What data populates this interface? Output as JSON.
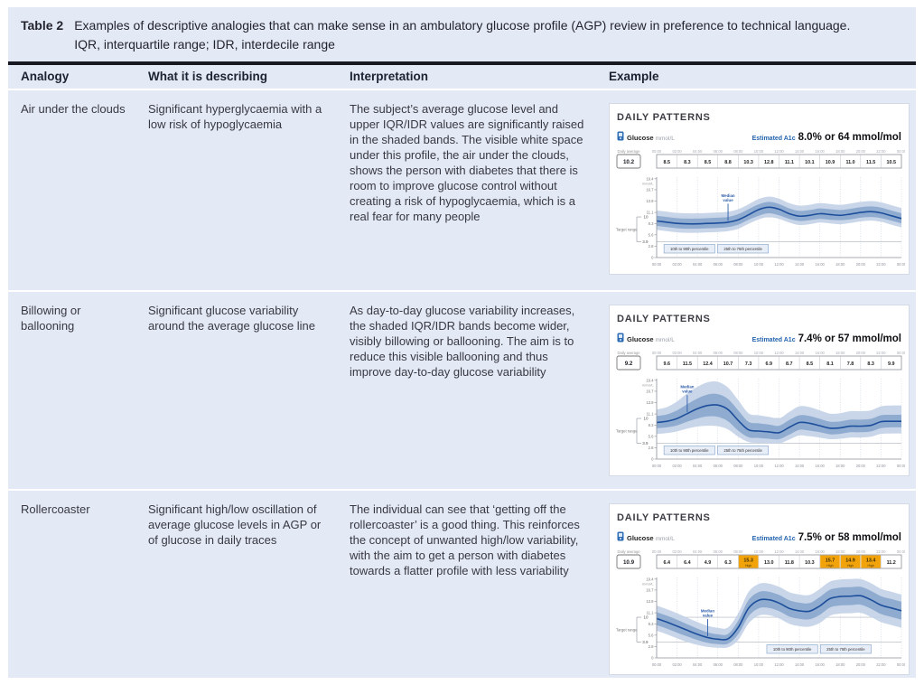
{
  "table": {
    "caption": {
      "label": "Table 2",
      "text": "Examples of descriptive analogies that can make sense in an ambulatory glucose profile (AGP) review in preference to technical language. IQR, interquartile range; IDR, interdecile range"
    },
    "columns": [
      "Analogy",
      "What it is describing",
      "Interpretation",
      "Example"
    ],
    "rows": [
      {
        "analogy": "Air under the clouds",
        "describing": "Significant hyperglycaemia with a low risk of hypoglycaemia",
        "interpretation": "The subject’s average glucose level and upper IQR/IDR values are significantly raised in the shaded bands. The visible white space under this profile, the air under the clouds, shows the person with diabetes that there is room to improve glucose control without creating a risk of hypoglycaemia, which is a real fear for many people"
      },
      {
        "analogy": "Billowing or ballooning",
        "describing": "Significant glucose variability around the average glucose line",
        "interpretation": "As day-to-day glucose variability increases, the shaded IQR/IDR bands become wider, visibly billowing or ballooning. The aim is to reduce this visible ballooning and thus improve day-to-day glucose variability"
      },
      {
        "analogy": "Rollercoaster",
        "describing": "Significant high/low oscillation of average glucose levels in AGP or of glucose in daily traces",
        "interpretation": "The individual can see that ‘getting off the rollercoaster’ is a good thing. This reinforces the concept of unwanted high/low variability, with the aim to get a person with diabetes towards a flatter profile with less variability"
      }
    ]
  },
  "chart_data": [
    {
      "type": "area",
      "title": "DAILY PATTERNS",
      "glucose_label": "Glucose",
      "glucose_units": "mmol/L",
      "a1c_label": "Estimated A1c",
      "a1c_value": "8.0% or 64 mmol/mol",
      "daily_average_label": "Daily average",
      "daily_average": "10.2",
      "time_labels": [
        "00:00",
        "02:00",
        "04:00",
        "06:00",
        "08:00",
        "10:00",
        "12:00",
        "14:00",
        "16:00",
        "18:00",
        "20:00",
        "22:00",
        "00:00"
      ],
      "block_values": [
        {
          "value": "8.5"
        },
        {
          "value": "8.3"
        },
        {
          "value": "8.5"
        },
        {
          "value": "8.8"
        },
        {
          "value": "10.3"
        },
        {
          "value": "12.8"
        },
        {
          "value": "11.1"
        },
        {
          "value": "10.1"
        },
        {
          "value": "10.9"
        },
        {
          "value": "11.0"
        },
        {
          "value": "11.5"
        },
        {
          "value": "10.5"
        }
      ],
      "y_ticks": [
        "19.4",
        "16.7",
        "13.9",
        "11.1",
        "8.3",
        "5.6",
        "2.8",
        "0"
      ],
      "y_axis_unit": "mmol/L",
      "ylim": [
        0,
        19.8
      ],
      "target_range": {
        "label": "Target range",
        "high": 10,
        "low": 3.9,
        "high_label": "10",
        "low_label": "3.9"
      },
      "median_annotation": {
        "label_line1": "Median",
        "label_line2": "value",
        "hour": 7
      },
      "legend": [
        "10th to 90th percentile",
        "25th to 75th percentile"
      ],
      "legend_x": 0.03,
      "x_hours": [
        0,
        1,
        2,
        3,
        4,
        5,
        6,
        7,
        8,
        9,
        10,
        11,
        12,
        13,
        14,
        15,
        16,
        17,
        18,
        19,
        20,
        21,
        22,
        23,
        24
      ],
      "series": {
        "median": [
          9.0,
          8.7,
          8.4,
          8.3,
          8.3,
          8.4,
          8.5,
          8.7,
          9.3,
          10.5,
          11.8,
          12.4,
          11.9,
          10.8,
          10.2,
          10.4,
          10.8,
          10.6,
          10.4,
          10.7,
          11.1,
          11.3,
          11.0,
          10.3,
          9.6
        ],
        "iqr_low": [
          7.8,
          7.5,
          7.2,
          7.1,
          7.1,
          7.2,
          7.3,
          7.5,
          8.1,
          9.3,
          10.3,
          10.9,
          10.4,
          9.5,
          9.0,
          9.2,
          9.5,
          9.3,
          9.2,
          9.4,
          9.8,
          10.0,
          9.7,
          9.1,
          8.4
        ],
        "iqr_high": [
          10.3,
          10.0,
          9.7,
          9.6,
          9.6,
          9.7,
          9.8,
          10.0,
          10.7,
          11.9,
          13.1,
          13.7,
          13.2,
          12.1,
          11.5,
          11.7,
          12.1,
          11.9,
          11.7,
          12.0,
          12.4,
          12.6,
          12.3,
          11.6,
          10.9
        ],
        "idr_low": [
          6.8,
          6.5,
          6.2,
          6.1,
          6.1,
          6.2,
          6.3,
          6.5,
          7.1,
          8.3,
          9.4,
          10.0,
          9.5,
          8.6,
          8.0,
          8.2,
          8.6,
          8.4,
          8.2,
          8.5,
          8.9,
          9.1,
          8.8,
          8.1,
          7.4
        ],
        "idr_high": [
          11.6,
          11.3,
          11.0,
          10.9,
          10.9,
          11.0,
          11.1,
          11.3,
          11.9,
          13.1,
          14.4,
          15.0,
          14.5,
          13.4,
          12.8,
          13.0,
          13.4,
          13.2,
          13.0,
          13.3,
          13.7,
          13.9,
          13.6,
          12.9,
          12.2
        ]
      }
    },
    {
      "type": "area",
      "title": "DAILY PATTERNS",
      "glucose_label": "Glucose",
      "glucose_units": "mmol/L",
      "a1c_label": "Estimated A1c",
      "a1c_value": "7.4% or 57 mmol/mol",
      "daily_average_label": "Daily average",
      "daily_average": "9.2",
      "time_labels": [
        "00:00",
        "02:00",
        "04:00",
        "06:00",
        "08:00",
        "10:00",
        "12:00",
        "14:00",
        "16:00",
        "18:00",
        "20:00",
        "22:00",
        "00:00"
      ],
      "block_values": [
        {
          "value": "9.6"
        },
        {
          "value": "11.5"
        },
        {
          "value": "12.4"
        },
        {
          "value": "10.7"
        },
        {
          "value": "7.3"
        },
        {
          "value": "6.9"
        },
        {
          "value": "8.7"
        },
        {
          "value": "8.5"
        },
        {
          "value": "8.1"
        },
        {
          "value": "7.8"
        },
        {
          "value": "8.3"
        },
        {
          "value": "9.9"
        }
      ],
      "y_ticks": [
        "19.4",
        "16.7",
        "13.9",
        "11.1",
        "8.3",
        "5.6",
        "2.8",
        "0"
      ],
      "y_axis_unit": "mmol/L",
      "ylim": [
        0,
        19.8
      ],
      "target_range": {
        "label": "Target range",
        "high": 10,
        "low": 3.9,
        "high_label": "10",
        "low_label": "3.9"
      },
      "median_annotation": {
        "label_line1": "Median",
        "label_line2": "value",
        "hour": 3
      },
      "legend": [
        "10th to 90th percentile",
        "25th to 75th percentile"
      ],
      "legend_x": 0.03,
      "x_hours": [
        0,
        1,
        2,
        3,
        4,
        5,
        6,
        7,
        8,
        9,
        10,
        11,
        12,
        13,
        14,
        15,
        16,
        17,
        18,
        19,
        20,
        21,
        22,
        23,
        24
      ],
      "series": {
        "median": [
          9.0,
          9.3,
          10.0,
          11.2,
          12.4,
          13.2,
          13.3,
          12.2,
          9.5,
          7.2,
          6.9,
          6.7,
          6.5,
          7.8,
          9.0,
          8.8,
          8.2,
          7.6,
          7.7,
          8.1,
          8.1,
          8.3,
          9.2,
          9.3,
          9.3
        ],
        "iqr_low": [
          7.6,
          7.8,
          8.3,
          9.2,
          10.0,
          10.5,
          10.4,
          9.3,
          7.0,
          5.4,
          5.2,
          5.0,
          4.9,
          6.0,
          7.2,
          7.0,
          6.6,
          6.1,
          6.2,
          6.6,
          6.6,
          6.8,
          7.6,
          7.8,
          7.8
        ],
        "iqr_high": [
          10.6,
          11.0,
          12.0,
          13.5,
          14.9,
          15.9,
          16.0,
          14.8,
          12.0,
          9.2,
          8.8,
          8.5,
          8.2,
          9.6,
          10.8,
          10.6,
          9.9,
          9.2,
          9.3,
          9.7,
          9.7,
          9.9,
          10.8,
          10.9,
          10.9
        ],
        "idr_low": [
          6.2,
          6.4,
          6.8,
          7.5,
          8.0,
          8.2,
          8.1,
          7.3,
          5.5,
          4.2,
          4.0,
          3.9,
          3.8,
          4.8,
          5.8,
          5.6,
          5.3,
          4.9,
          5.0,
          5.3,
          5.3,
          5.5,
          6.2,
          6.3,
          6.3
        ],
        "idr_high": [
          12.2,
          12.8,
          14.2,
          16.2,
          17.8,
          18.9,
          19.0,
          17.6,
          14.5,
          11.3,
          10.8,
          10.4,
          10.0,
          11.6,
          13.0,
          12.8,
          12.0,
          11.2,
          11.3,
          11.8,
          11.8,
          12.0,
          13.0,
          13.2,
          13.2
        ]
      }
    },
    {
      "type": "area",
      "title": "DAILY PATTERNS",
      "glucose_label": "Glucose",
      "glucose_units": "mmol/L",
      "a1c_label": "Estimated A1c",
      "a1c_value": "7.5% or 58 mmol/mol",
      "daily_average_label": "Daily average",
      "daily_average": "10.9",
      "time_labels": [
        "00:00",
        "02:00",
        "04:00",
        "06:00",
        "08:00",
        "10:00",
        "12:00",
        "14:00",
        "16:00",
        "18:00",
        "20:00",
        "22:00",
        "00:00"
      ],
      "block_values": [
        {
          "value": "6.4"
        },
        {
          "value": "6.4"
        },
        {
          "value": "4.9"
        },
        {
          "value": "6.3"
        },
        {
          "value": "15.3",
          "flag": "High"
        },
        {
          "value": "13.0"
        },
        {
          "value": "11.8"
        },
        {
          "value": "10.3"
        },
        {
          "value": "15.7",
          "flag": "High"
        },
        {
          "value": "14.9",
          "flag": "High"
        },
        {
          "value": "13.4",
          "flag": "High"
        },
        {
          "value": "11.2"
        }
      ],
      "y_ticks": [
        "19.4",
        "16.7",
        "13.9",
        "11.1",
        "8.3",
        "5.6",
        "2.8",
        "0"
      ],
      "y_axis_unit": "mmol/L",
      "ylim": [
        0,
        19.8
      ],
      "target_range": {
        "label": "Target range",
        "high": 10,
        "low": 3.9,
        "high_label": "10",
        "low_label": "3.9"
      },
      "median_annotation": {
        "label_line1": "Median",
        "label_line2": "value",
        "hour": 5
      },
      "legend": [
        "10th to 90th percentile",
        "25th to 75th percentile"
      ],
      "legend_x": 0.45,
      "x_hours": [
        0,
        1,
        2,
        3,
        4,
        5,
        6,
        7,
        8,
        9,
        10,
        11,
        12,
        13,
        14,
        15,
        16,
        17,
        18,
        19,
        20,
        21,
        22,
        23,
        24
      ],
      "series": {
        "median": [
          9.7,
          8.8,
          7.8,
          6.8,
          5.8,
          5.0,
          4.6,
          4.7,
          7.5,
          12.2,
          14.2,
          14.3,
          13.5,
          12.2,
          11.6,
          11.5,
          12.8,
          14.6,
          15.1,
          15.2,
          15.3,
          14.3,
          13.0,
          12.3,
          11.6
        ],
        "iqr_low": [
          8.1,
          7.2,
          6.2,
          5.3,
          4.4,
          3.7,
          3.4,
          3.5,
          5.8,
          10.2,
          12.2,
          12.3,
          11.5,
          10.2,
          9.6,
          9.5,
          10.6,
          12.4,
          12.9,
          13.0,
          13.1,
          12.1,
          10.8,
          10.1,
          9.4
        ],
        "iqr_high": [
          11.3,
          10.4,
          9.4,
          8.3,
          7.2,
          6.3,
          5.8,
          5.9,
          9.2,
          14.2,
          16.2,
          16.3,
          15.5,
          14.2,
          13.6,
          13.5,
          15.0,
          16.8,
          17.3,
          17.4,
          17.5,
          16.5,
          15.2,
          14.5,
          13.8
        ],
        "idr_low": [
          6.7,
          5.8,
          4.8,
          3.9,
          3.2,
          2.7,
          2.5,
          2.6,
          4.4,
          8.4,
          10.4,
          10.5,
          9.7,
          8.4,
          7.8,
          7.7,
          8.6,
          10.4,
          10.9,
          11.0,
          11.1,
          10.1,
          8.8,
          8.1,
          7.4
        ],
        "idr_high": [
          12.9,
          12.0,
          11.0,
          9.9,
          8.8,
          7.9,
          7.4,
          7.5,
          11.0,
          16.2,
          18.2,
          18.3,
          17.5,
          16.2,
          15.6,
          15.5,
          17.0,
          18.8,
          19.3,
          19.4,
          19.4,
          18.4,
          17.0,
          16.3,
          15.6
        ]
      }
    }
  ],
  "colors": {
    "table_background": "#e3eaf5",
    "rule": "#191922",
    "idr_band": "#c3d2e7",
    "iqr_band": "#8caacf",
    "median_line": "#1d4e9b",
    "high_cell": "#f2a30a",
    "a1c_blue": "#2263ae"
  }
}
